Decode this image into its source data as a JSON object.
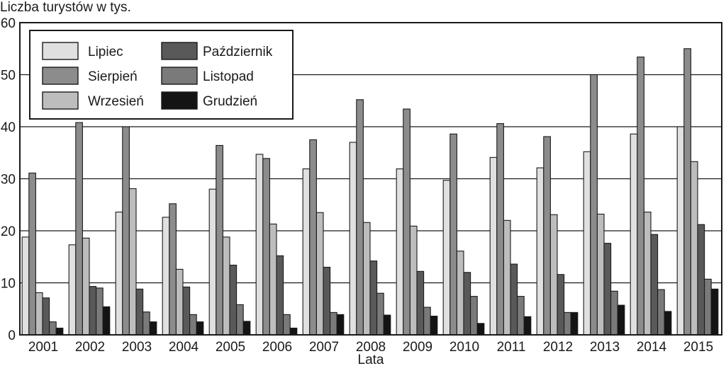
{
  "chart_data": {
    "type": "bar",
    "ylabel": "Liczba turystów w tys.",
    "xlabel": "Lata",
    "ylim": [
      0,
      60
    ],
    "yticks": [
      "0",
      "10",
      "20",
      "30",
      "40",
      "50",
      "60"
    ],
    "grid": true,
    "legend_position": "top-left",
    "categories": [
      "2001",
      "2002",
      "2003",
      "2004",
      "2005",
      "2006",
      "2007",
      "2008",
      "2009",
      "2010",
      "2011",
      "2012",
      "2013",
      "2014",
      "2015"
    ],
    "series": [
      {
        "name": "Lipiec",
        "color": "#e0e0e0",
        "values": [
          18.8,
          17.3,
          23.6,
          22.6,
          28.0,
          34.7,
          31.9,
          37.0,
          31.9,
          29.7,
          34.1,
          32.1,
          35.2,
          38.6,
          40.0
        ]
      },
      {
        "name": "Sierpień",
        "color": "#8c8c8c",
        "values": [
          31.1,
          40.8,
          40.0,
          25.2,
          36.4,
          33.9,
          37.5,
          45.2,
          43.4,
          38.6,
          40.6,
          38.1,
          50.0,
          53.4,
          55.0
        ]
      },
      {
        "name": "Wrzesień",
        "color": "#bdbdbd",
        "values": [
          8.1,
          18.6,
          28.1,
          12.6,
          18.8,
          21.3,
          23.5,
          21.6,
          20.9,
          16.1,
          22.0,
          23.1,
          23.2,
          23.6,
          33.3
        ]
      },
      {
        "name": "Październik",
        "color": "#595959",
        "values": [
          7.1,
          9.3,
          8.8,
          9.2,
          13.4,
          15.2,
          13.0,
          14.2,
          12.2,
          12.0,
          13.6,
          11.6,
          17.6,
          19.3,
          21.2
        ]
      },
      {
        "name": "Listopad",
        "color": "#7a7a7a",
        "values": [
          2.5,
          9.0,
          4.4,
          3.9,
          5.8,
          3.9,
          4.3,
          8.0,
          5.3,
          7.4,
          7.4,
          4.3,
          8.4,
          8.7,
          10.7
        ]
      },
      {
        "name": "Grudzień",
        "color": "#141414",
        "values": [
          1.3,
          5.4,
          2.5,
          2.5,
          2.6,
          1.3,
          3.9,
          3.8,
          3.6,
          2.2,
          3.5,
          4.3,
          5.7,
          4.5,
          8.8
        ]
      }
    ]
  }
}
